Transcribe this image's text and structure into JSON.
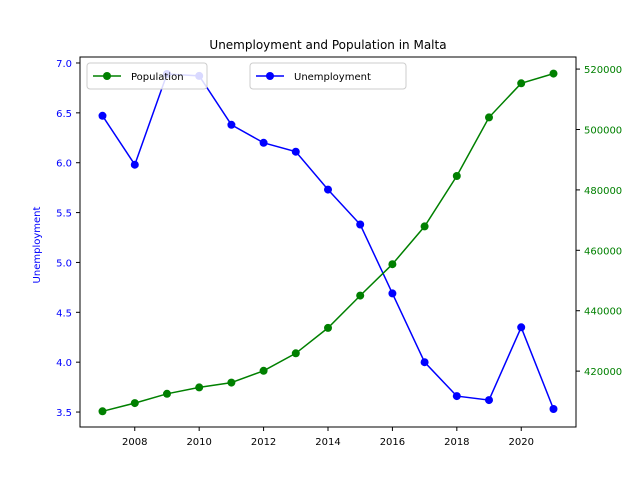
{
  "chart_data": {
    "type": "line",
    "title": "Unemployment and Population in Malta",
    "xlabel": "",
    "x": [
      2007,
      2008,
      2009,
      2010,
      2011,
      2012,
      2013,
      2014,
      2015,
      2016,
      2017,
      2018,
      2019,
      2020,
      2021
    ],
    "xlim": [
      2006.3,
      2021.7
    ],
    "xticks": [
      2008,
      2010,
      2012,
      2014,
      2016,
      2018,
      2020
    ],
    "left_axis": {
      "label": "Unemployment",
      "color": "#0000ff",
      "ylim": [
        3.35,
        7.06
      ],
      "ticks": [
        3.5,
        4.0,
        4.5,
        5.0,
        5.5,
        6.0,
        6.5,
        7.0
      ],
      "tick_labels": [
        "3.5",
        "4.0",
        "4.5",
        "5.0",
        "5.5",
        "6.0",
        "6.5",
        "7.0"
      ]
    },
    "right_axis": {
      "label": "",
      "color": "#008000",
      "ylim": [
        401500,
        524000
      ],
      "ticks": [
        420000,
        440000,
        460000,
        480000,
        500000,
        520000
      ],
      "tick_labels": [
        "420000",
        "440000",
        "460000",
        "480000",
        "500000",
        "520000"
      ]
    },
    "series": [
      {
        "name": "Unemployment",
        "axis": "left",
        "color": "#0000ff",
        "values": [
          6.47,
          5.98,
          6.89,
          6.87,
          6.38,
          6.2,
          6.11,
          5.73,
          5.38,
          4.69,
          4.0,
          3.66,
          3.62,
          4.35,
          3.53
        ]
      },
      {
        "name": "Population",
        "axis": "right",
        "color": "#008000",
        "values": [
          406700,
          409400,
          412500,
          414600,
          416200,
          420100,
          425900,
          434300,
          445000,
          455400,
          467900,
          484600,
          504000,
          515300,
          518500
        ]
      }
    ],
    "legend": [
      {
        "name": "Population",
        "color": "#008000",
        "placement": "upper-left"
      },
      {
        "name": "Unemployment",
        "color": "#0000ff",
        "placement": "upper-center"
      }
    ],
    "grid": false
  }
}
